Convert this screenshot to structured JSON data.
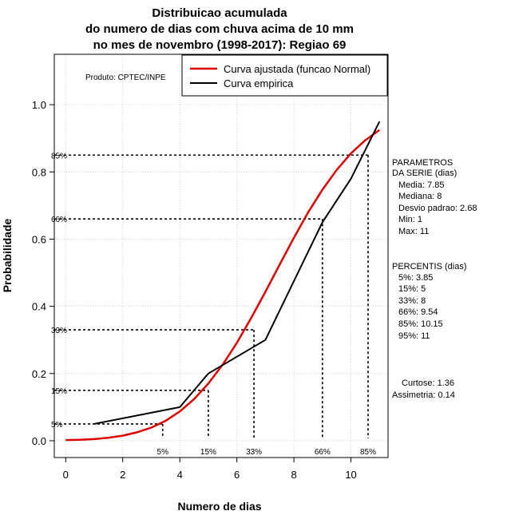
{
  "chart_data": {
    "type": "line",
    "title_lines": [
      "Distribuicao acumulada",
      "do numero de dias com chuva acima de 10 mm",
      "no mes de novembro (1998-2017): Regiao 69"
    ],
    "xlabel": "Numero de dias",
    "ylabel": "Probabilidade",
    "xlim": [
      -0.4,
      11.3
    ],
    "ylim": [
      -0.05,
      1.15
    ],
    "x_ticks": [
      0,
      2,
      4,
      6,
      8,
      10
    ],
    "x_tick_labels": [
      "0",
      "2",
      "4",
      "6",
      "8",
      "10"
    ],
    "y_ticks": [
      0.0,
      0.2,
      0.4,
      0.6,
      0.8,
      1.0
    ],
    "y_tick_labels": [
      "0.0",
      "0.2",
      "0.4",
      "0.6",
      "0.8",
      "1.0"
    ],
    "grid": true,
    "series": [
      {
        "name": "Curva ajustada (funcao Normal)",
        "color": "#dd0000",
        "x": [
          0,
          0.5,
          1,
          1.5,
          2,
          2.5,
          3,
          3.5,
          4,
          4.5,
          5,
          5.5,
          6,
          6.5,
          7,
          7.5,
          8,
          8.5,
          9,
          9.5,
          10,
          10.5,
          11
        ],
        "values": [
          0.002,
          0.003,
          0.005,
          0.009,
          0.015,
          0.025,
          0.039,
          0.059,
          0.087,
          0.124,
          0.17,
          0.226,
          0.291,
          0.365,
          0.443,
          0.524,
          0.604,
          0.68,
          0.747,
          0.806,
          0.855,
          0.894,
          0.925
        ]
      },
      {
        "name": "Curva empirica",
        "color": "#000000",
        "x": [
          1,
          4,
          5,
          7,
          9,
          10,
          11
        ],
        "values": [
          0.05,
          0.1,
          0.2,
          0.3,
          0.65,
          0.78,
          0.95
        ]
      }
    ],
    "percentile_guides": [
      {
        "label": "5%",
        "p": 0.05,
        "x": 3.4
      },
      {
        "label": "15%",
        "p": 0.15,
        "x": 5.0
      },
      {
        "label": "33%",
        "p": 0.33,
        "x": 6.6
      },
      {
        "label": "66%",
        "p": 0.66,
        "x": 9.0
      },
      {
        "label": "85%",
        "p": 0.85,
        "x": 10.6
      }
    ],
    "legend_position": "top-right",
    "product_label": "Produto: CPTEC/INPE"
  },
  "stats": {
    "parametros_header": [
      "PARAMETROS",
      "DA SERIE (dias)"
    ],
    "parametros": [
      "Media: 7.85",
      "Mediana: 8",
      "Desvio padrao: 2.68",
      "Min: 1",
      "Max: 11"
    ],
    "percentis_header": "PERCENTIS (dias)",
    "percentis": [
      "5%: 3.85",
      "15%: 5",
      "33%: 8",
      "66%: 9.54",
      "85%: 10.15",
      "95%: 11"
    ],
    "shape": [
      "Curtose: 1.36",
      "Assimetria: 0.14"
    ]
  }
}
